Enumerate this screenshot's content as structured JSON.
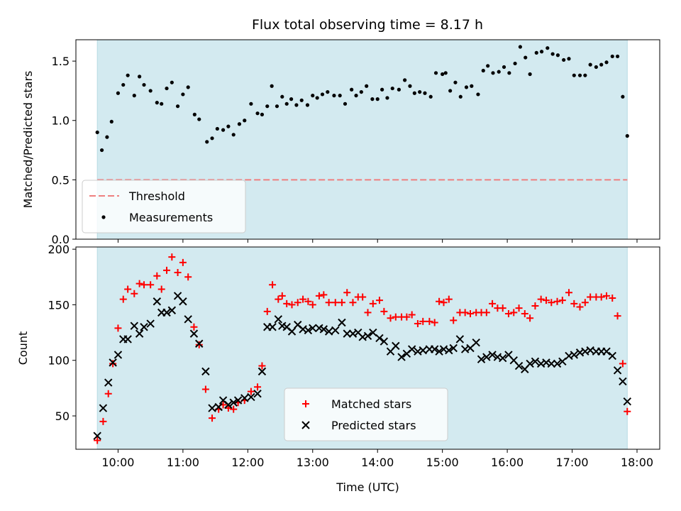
{
  "figure": {
    "title": "Flux total observing time = 8.17 h"
  },
  "colors": {
    "shade": "#d3eaf0",
    "threshold": "#ee7f7f",
    "measurement": "#000000",
    "matched": "#ff0000",
    "predicted": "#000000"
  },
  "chart_data": [
    {
      "type": "scatter",
      "ylabel": "Matched/Predicted stars",
      "xlabel": "",
      "xlim": [
        9.35,
        18.35
      ],
      "ylim": [
        0,
        1.68
      ],
      "yticks": [
        0.0,
        0.5,
        1.0,
        1.5
      ],
      "ytick_labels": [
        "0.0",
        "0.5",
        "1.0",
        "1.5"
      ],
      "shaded_span": [
        9.68,
        17.85
      ],
      "legend_location": "lower-left",
      "threshold": {
        "name": "Threshold",
        "value": 0.5,
        "x_range": [
          9.68,
          17.85
        ]
      },
      "series": [
        {
          "name": "Measurements",
          "marker": "dot",
          "x": [
            9.68,
            9.75,
            9.83,
            9.9,
            10.0,
            10.08,
            10.15,
            10.25,
            10.33,
            10.4,
            10.5,
            10.6,
            10.67,
            10.75,
            10.83,
            10.92,
            11.0,
            11.08,
            11.18,
            11.25,
            11.37,
            11.45,
            11.53,
            11.62,
            11.7,
            11.78,
            11.87,
            11.95,
            12.05,
            12.15,
            12.22,
            12.3,
            12.37,
            12.45,
            12.53,
            12.6,
            12.67,
            12.75,
            12.83,
            12.92,
            13.0,
            13.07,
            13.15,
            13.23,
            13.33,
            13.42,
            13.5,
            13.6,
            13.67,
            13.75,
            13.83,
            13.92,
            14.0,
            14.07,
            14.15,
            14.23,
            14.33,
            14.42,
            14.5,
            14.57,
            14.65,
            14.73,
            14.82,
            14.9,
            15.0,
            15.05,
            15.12,
            15.2,
            15.28,
            15.37,
            15.45,
            15.55,
            15.63,
            15.7,
            15.78,
            15.87,
            15.95,
            16.03,
            16.12,
            16.2,
            16.28,
            16.35,
            16.45,
            16.53,
            16.62,
            16.7,
            16.78,
            16.87,
            16.95,
            17.03,
            17.12,
            17.2,
            17.28,
            17.37,
            17.45,
            17.53,
            17.62,
            17.7,
            17.78,
            17.85
          ],
          "y": [
            0.9,
            0.75,
            0.86,
            0.99,
            1.23,
            1.3,
            1.38,
            1.21,
            1.37,
            1.3,
            1.25,
            1.15,
            1.14,
            1.27,
            1.32,
            1.12,
            1.22,
            1.28,
            1.05,
            1.01,
            0.82,
            0.85,
            0.93,
            0.92,
            0.95,
            0.88,
            0.97,
            1.0,
            1.14,
            1.06,
            1.05,
            1.12,
            1.29,
            1.12,
            1.2,
            1.14,
            1.18,
            1.13,
            1.17,
            1.13,
            1.21,
            1.19,
            1.22,
            1.24,
            1.21,
            1.21,
            1.14,
            1.26,
            1.21,
            1.24,
            1.29,
            1.18,
            1.18,
            1.26,
            1.19,
            1.27,
            1.26,
            1.34,
            1.29,
            1.23,
            1.24,
            1.23,
            1.2,
            1.4,
            1.39,
            1.4,
            1.25,
            1.32,
            1.2,
            1.28,
            1.29,
            1.22,
            1.42,
            1.46,
            1.4,
            1.41,
            1.45,
            1.4,
            1.48,
            1.62,
            1.53,
            1.39,
            1.57,
            1.58,
            1.61,
            1.56,
            1.55,
            1.51,
            1.52,
            1.38,
            1.38,
            1.38,
            1.47,
            1.45,
            1.47,
            1.49,
            1.54,
            1.54,
            1.2,
            0.87
          ]
        }
      ]
    },
    {
      "type": "scatter",
      "ylabel": "Count",
      "xlabel": "Time (UTC)",
      "xlim": [
        9.35,
        18.35
      ],
      "ylim": [
        20,
        202
      ],
      "yticks": [
        50,
        100,
        150,
        200
      ],
      "ytick_labels": [
        "50",
        "100",
        "150",
        "200"
      ],
      "xticks": [
        10,
        11,
        12,
        13,
        14,
        15,
        16,
        17,
        18
      ],
      "xtick_labels": [
        "10:00",
        "11:00",
        "12:00",
        "13:00",
        "14:00",
        "15:00",
        "16:00",
        "17:00",
        "18:00"
      ],
      "shaded_span": [
        9.68,
        17.85
      ],
      "legend_location": "lower-center",
      "series": [
        {
          "name": "Matched stars",
          "marker": "plus",
          "x": [
            9.68,
            9.77,
            9.85,
            9.92,
            10.0,
            10.08,
            10.15,
            10.25,
            10.33,
            10.4,
            10.5,
            10.6,
            10.67,
            10.75,
            10.83,
            10.92,
            11.0,
            11.08,
            11.17,
            11.25,
            11.35,
            11.45,
            11.55,
            11.62,
            11.7,
            11.78,
            11.85,
            11.95,
            12.05,
            12.15,
            12.22,
            12.3,
            12.38,
            12.47,
            12.53,
            12.6,
            12.68,
            12.77,
            12.85,
            12.93,
            13.0,
            13.1,
            13.17,
            13.25,
            13.35,
            13.45,
            13.53,
            13.62,
            13.7,
            13.77,
            13.85,
            13.93,
            14.03,
            14.1,
            14.2,
            14.28,
            14.37,
            14.45,
            14.53,
            14.62,
            14.7,
            14.8,
            14.88,
            14.95,
            15.02,
            15.1,
            15.17,
            15.27,
            15.35,
            15.43,
            15.52,
            15.6,
            15.68,
            15.77,
            15.85,
            15.93,
            16.02,
            16.1,
            16.18,
            16.27,
            16.35,
            16.43,
            16.52,
            16.6,
            16.68,
            16.77,
            16.85,
            16.95,
            17.03,
            17.12,
            17.2,
            17.28,
            17.37,
            17.45,
            17.53,
            17.62,
            17.7,
            17.78,
            17.85
          ],
          "y": [
            28,
            45,
            70,
            97,
            129,
            155,
            164,
            160,
            169,
            168,
            168,
            176,
            164,
            181,
            193,
            179,
            188,
            175,
            130,
            114,
            74,
            48,
            56,
            60,
            57,
            56,
            62,
            64,
            72,
            76,
            95,
            144,
            168,
            155,
            158,
            151,
            150,
            152,
            155,
            153,
            150,
            158,
            159,
            152,
            152,
            152,
            161,
            152,
            157,
            157,
            143,
            151,
            154,
            144,
            138,
            139,
            139,
            139,
            141,
            133,
            135,
            135,
            134,
            153,
            152,
            155,
            136,
            143,
            143,
            142,
            143,
            143,
            143,
            151,
            147,
            147,
            142,
            143,
            147,
            142,
            138,
            149,
            155,
            154,
            152,
            153,
            154,
            161,
            151,
            148,
            152,
            157,
            157,
            157,
            158,
            156,
            140,
            97,
            54
          ]
        },
        {
          "name": "Predicted stars",
          "marker": "x",
          "x": [
            9.68,
            9.77,
            9.85,
            9.92,
            10.0,
            10.08,
            10.15,
            10.25,
            10.33,
            10.4,
            10.5,
            10.6,
            10.67,
            10.75,
            10.83,
            10.92,
            11.0,
            11.08,
            11.17,
            11.25,
            11.35,
            11.45,
            11.55,
            11.62,
            11.7,
            11.78,
            11.85,
            11.95,
            12.05,
            12.15,
            12.22,
            12.3,
            12.38,
            12.47,
            12.53,
            12.6,
            12.68,
            12.77,
            12.85,
            12.93,
            13.0,
            13.1,
            13.17,
            13.25,
            13.35,
            13.45,
            13.53,
            13.62,
            13.7,
            13.77,
            13.85,
            13.93,
            14.03,
            14.1,
            14.2,
            14.28,
            14.37,
            14.45,
            14.53,
            14.62,
            14.7,
            14.8,
            14.88,
            14.95,
            15.02,
            15.1,
            15.17,
            15.27,
            15.35,
            15.43,
            15.52,
            15.6,
            15.68,
            15.77,
            15.85,
            15.93,
            16.02,
            16.1,
            16.18,
            16.27,
            16.35,
            16.43,
            16.52,
            16.6,
            16.68,
            16.77,
            16.85,
            16.95,
            17.03,
            17.12,
            17.2,
            17.28,
            17.37,
            17.45,
            17.53,
            17.62,
            17.7,
            17.78,
            17.85
          ],
          "y": [
            32,
            57,
            80,
            98,
            105,
            119,
            119,
            131,
            124,
            130,
            133,
            153,
            143,
            143,
            145,
            158,
            153,
            137,
            124,
            115,
            90,
            57,
            58,
            64,
            60,
            62,
            64,
            66,
            67,
            70,
            90,
            130,
            130,
            137,
            131,
            130,
            126,
            132,
            128,
            127,
            129,
            129,
            128,
            126,
            127,
            134,
            124,
            124,
            125,
            121,
            122,
            125,
            120,
            117,
            108,
            113,
            103,
            106,
            110,
            108,
            109,
            110,
            110,
            108,
            110,
            109,
            111,
            119,
            110,
            111,
            116,
            101,
            103,
            105,
            103,
            102,
            105,
            100,
            95,
            92,
            97,
            99,
            97,
            98,
            97,
            97,
            99,
            104,
            105,
            107,
            108,
            109,
            108,
            108,
            108,
            104,
            91,
            81,
            63
          ]
        }
      ]
    }
  ]
}
